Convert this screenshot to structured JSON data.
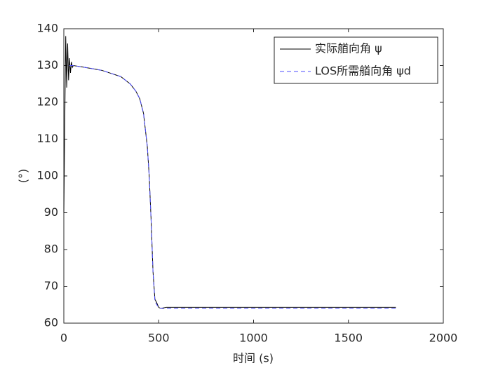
{
  "chart_data": {
    "type": "line",
    "x_label": "时间 (s)",
    "y_label": "(°)",
    "xlim": [
      0,
      2000
    ],
    "ylim": [
      60,
      140
    ],
    "xticks": [
      0,
      500,
      1000,
      1500,
      2000
    ],
    "yticks": [
      60,
      70,
      80,
      90,
      100,
      110,
      120,
      130,
      140
    ],
    "legend": "upper right",
    "series": [
      {
        "name": "实际艏向角 ψ",
        "color": "#000000",
        "dash": "solid",
        "x": [
          0,
          5,
          10,
          15,
          20,
          25,
          30,
          35,
          40,
          45,
          50,
          100,
          200,
          300,
          350,
          380,
          400,
          420,
          440,
          450,
          460,
          470,
          480,
          490,
          500,
          510,
          520,
          540,
          600,
          1000,
          1750
        ],
        "values": [
          90,
          115,
          138,
          124,
          136,
          126,
          132,
          128,
          131,
          129.5,
          130,
          129.6,
          128.7,
          127,
          125,
          123,
          121,
          117,
          108,
          100,
          88,
          74,
          66.5,
          65.5,
          64.3,
          64,
          64.1,
          64.3,
          64.3,
          64.3,
          64.3
        ]
      },
      {
        "name": "LOS所需艏向角 ψd",
        "color": "#4d4dff",
        "dash": "dashed",
        "x": [
          30,
          50,
          100,
          200,
          300,
          350,
          380,
          400,
          420,
          440,
          450,
          460,
          470,
          480,
          490,
          500,
          510,
          520,
          540,
          600,
          1000,
          1750
        ],
        "values": [
          130,
          130,
          129.6,
          128.7,
          127,
          125,
          123,
          121,
          117,
          108,
          100,
          88,
          74,
          66,
          65,
          64.3,
          64,
          64,
          64,
          64,
          64,
          64
        ]
      }
    ]
  }
}
